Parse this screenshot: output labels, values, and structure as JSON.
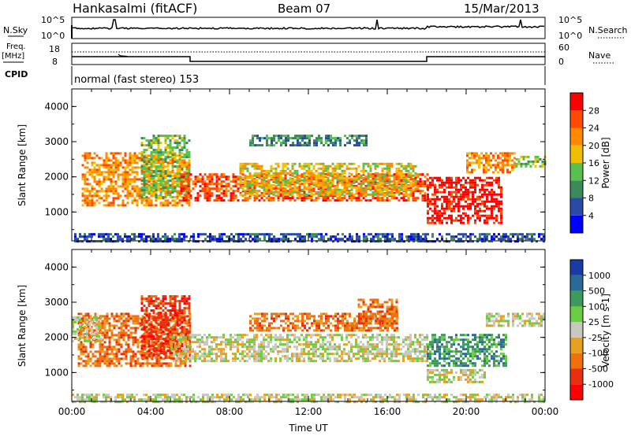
{
  "header": {
    "station": "Hankasalmi (fitACF)",
    "beam": "Beam 07",
    "date": "15/Mar/2013"
  },
  "strips": {
    "nsky_label": "N.Sky",
    "nsearch_label": "N.Search",
    "nsky_ticks": [
      "10^5",
      "10^0"
    ],
    "nsky_right_ticks": [
      "10^5",
      "10^0"
    ],
    "freq_label_line1": "Freq.",
    "freq_label_line2": "[MHz]",
    "freq_ticks": [
      "18",
      "8"
    ],
    "nave_label": "Nave",
    "nave_ticks": [
      "60",
      "0"
    ],
    "cpid_label": "CPID",
    "cpid_text": "normal (fast stereo) 153"
  },
  "colors": {
    "power_scale": [
      "#0000ff",
      "#2a4aa8",
      "#3b8a5a",
      "#58c050",
      "#f0c000",
      "#ff8a00",
      "#ff4a00",
      "#ff0000"
    ],
    "velocity_scale": [
      "#1a3aa8",
      "#2a6a98",
      "#3c9a5a",
      "#6ccc44",
      "#c8c8c0",
      "#e8a020",
      "#f07010",
      "#e83010",
      "#ff0000"
    ]
  },
  "chart_data": [
    {
      "type": "heatmap",
      "name": "power",
      "ylabel": "Slant Range [km]",
      "ylim": [
        180,
        4500
      ],
      "yticks": [
        "1000",
        "2000",
        "3000",
        "4000"
      ],
      "xlim_hours": [
        0,
        24
      ],
      "colorbar_label": "Power [dB]",
      "colorbar_ticks": [
        "4",
        "8",
        "12",
        "16",
        "20",
        "24",
        "28"
      ],
      "bands": [
        {
          "start": 0.5,
          "end": 6.0,
          "range_lo": 1200,
          "range_hi": 2700,
          "level": 5
        },
        {
          "start": 3.5,
          "end": 6.0,
          "range_lo": 1400,
          "range_hi": 3200,
          "level": 3
        },
        {
          "start": 5.5,
          "end": 18.0,
          "range_lo": 1300,
          "range_hi": 2100,
          "level": 6
        },
        {
          "start": 8.5,
          "end": 17.5,
          "range_lo": 1500,
          "range_hi": 2400,
          "level": 4
        },
        {
          "start": 9.0,
          "end": 15.0,
          "range_lo": 2900,
          "range_hi": 3200,
          "level": 2
        },
        {
          "start": 18.0,
          "end": 21.8,
          "range_lo": 700,
          "range_hi": 2000,
          "level": 7
        },
        {
          "start": 20.0,
          "end": 22.5,
          "range_lo": 2100,
          "range_hi": 2700,
          "level": 5
        },
        {
          "start": 22.5,
          "end": 24.0,
          "range_lo": 2300,
          "range_hi": 2600,
          "level": 3
        },
        {
          "start": 0.0,
          "end": 24.0,
          "range_lo": 180,
          "range_hi": 400,
          "level": 1
        }
      ]
    },
    {
      "type": "heatmap",
      "name": "velocity",
      "xlabel": "Time UT",
      "ylabel": "Slant Range [km]",
      "ylim": [
        180,
        4500
      ],
      "yticks": [
        "1000",
        "2000",
        "3000",
        "4000"
      ],
      "xticks": [
        "00:00",
        "04:00",
        "08:00",
        "12:00",
        "16:00",
        "20:00",
        "00:00"
      ],
      "xlim_hours": [
        0,
        24
      ],
      "colorbar_label": "Velocity [m s-1]",
      "colorbar_ticks": [
        "1000",
        "500",
        "100",
        "25",
        "-25",
        "-100",
        "-500",
        "-1000"
      ],
      "bands": [
        {
          "start": 0.3,
          "end": 6.0,
          "range_lo": 1200,
          "range_hi": 2700,
          "level": 6
        },
        {
          "start": 0.0,
          "end": 1.5,
          "range_lo": 1900,
          "range_hi": 2600,
          "level": 4
        },
        {
          "start": 3.5,
          "end": 6.0,
          "range_lo": 1400,
          "range_hi": 3200,
          "level": 7
        },
        {
          "start": 5.0,
          "end": 18.0,
          "range_lo": 1300,
          "range_hi": 2100,
          "level": 4
        },
        {
          "start": 9.0,
          "end": 16.5,
          "range_lo": 2200,
          "range_hi": 2700,
          "level": 6
        },
        {
          "start": 14.5,
          "end": 16.5,
          "range_lo": 2400,
          "range_hi": 3100,
          "level": 6
        },
        {
          "start": 18.0,
          "end": 22.0,
          "range_lo": 1200,
          "range_hi": 2100,
          "level": 2
        },
        {
          "start": 18.0,
          "end": 21.0,
          "range_lo": 700,
          "range_hi": 1100,
          "level": 4
        },
        {
          "start": 21.0,
          "end": 24.0,
          "range_lo": 2300,
          "range_hi": 2700,
          "level": 4
        },
        {
          "start": 0.0,
          "end": 24.0,
          "range_lo": 180,
          "range_hi": 400,
          "level": 4
        }
      ]
    }
  ]
}
